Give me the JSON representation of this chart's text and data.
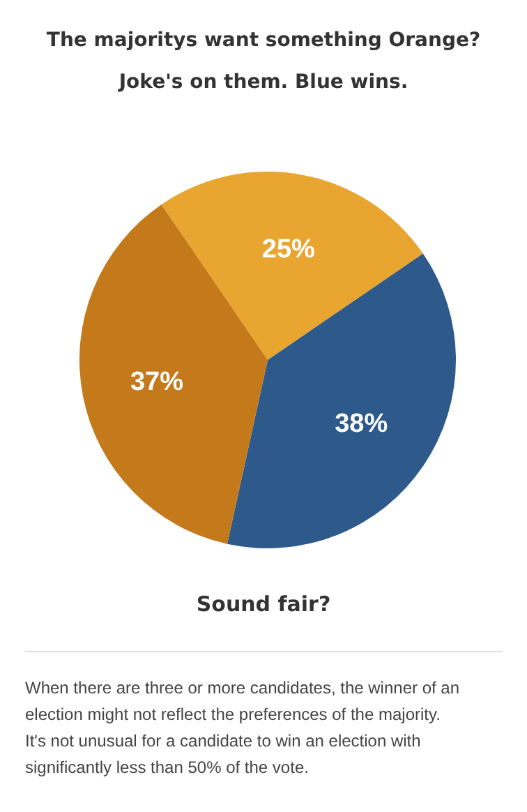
{
  "chart_data": {
    "type": "pie",
    "title": "The majoritys want something Orange?\nJoke's on them. Blue wins.",
    "categories": [
      null,
      null,
      null
    ],
    "values": [
      25,
      38,
      37
    ],
    "colors": [
      "#e8a630",
      "#2e5a8b",
      "#c4791a"
    ],
    "value_labels": [
      "25%",
      "38%",
      "37%"
    ],
    "annotations": [
      "Sound fair?",
      "When there are three or more candidates, the winner of an election might not reflect the preferences of the majority. It's not unusual for a candidate to win an election with significantly less than 50% of the vote."
    ]
  }
}
